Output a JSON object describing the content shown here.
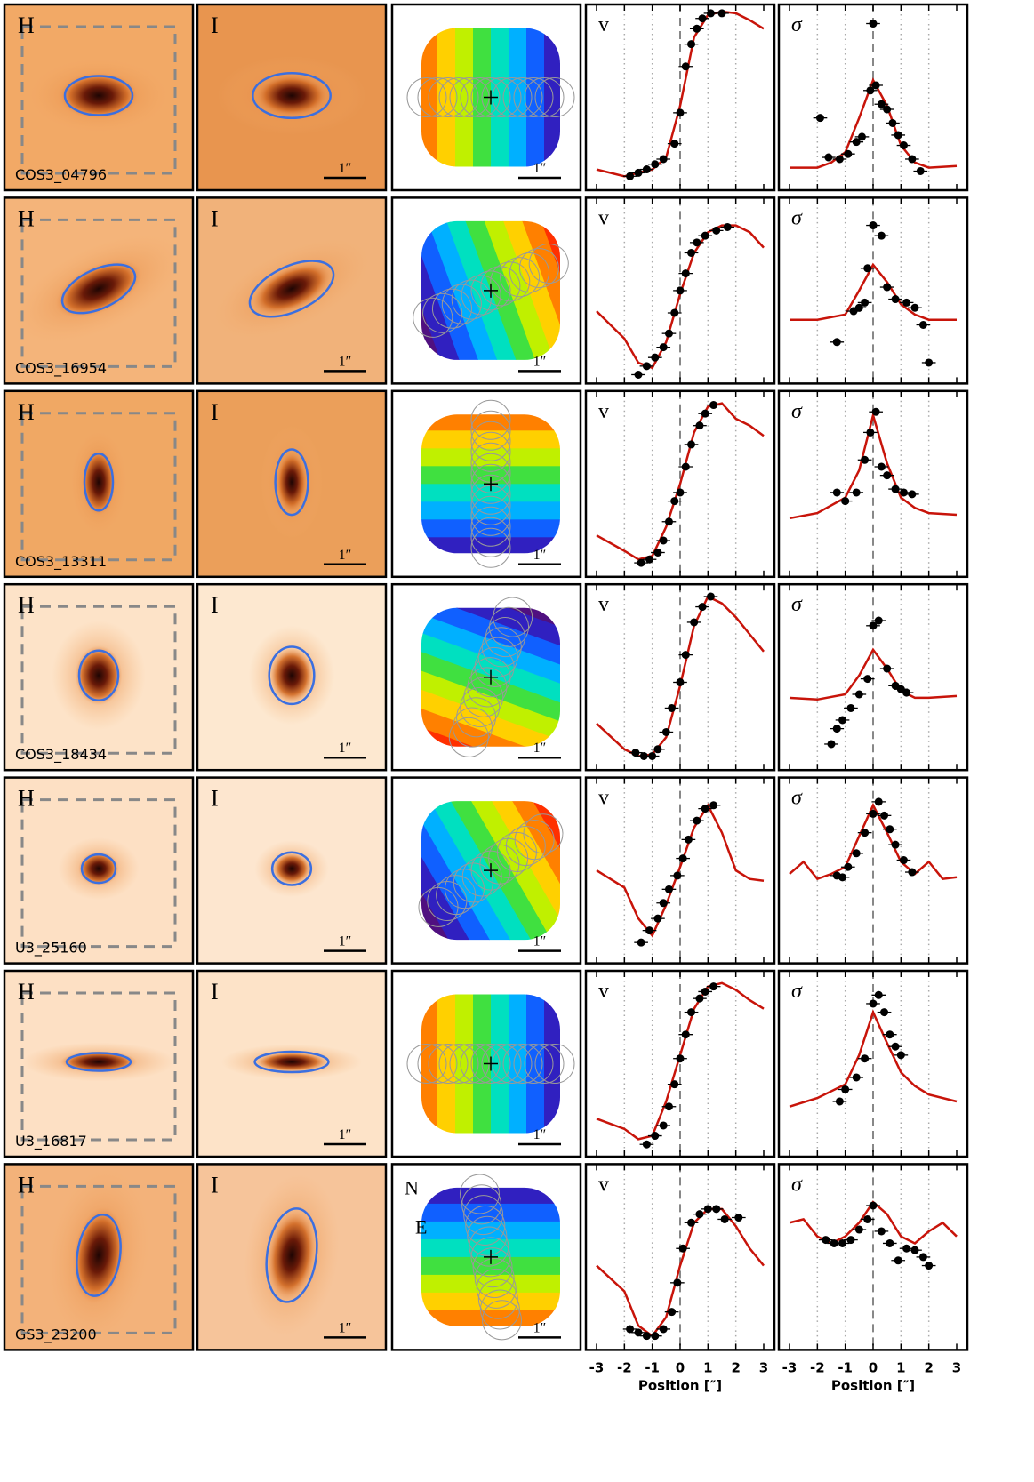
{
  "galaxies": [
    "COS3_04796",
    "COS3_16954",
    "COS3_13311",
    "COS3_18434",
    "U3_25160",
    "U3_16817",
    "GS3_23200"
  ],
  "labels": {
    "image_labels": [
      "H",
      "I"
    ],
    "scale_label": "1″",
    "compass": [
      "N",
      "E"
    ]
  },
  "axis": {
    "xlabel": "Position [″]",
    "xlim": [
      -3,
      3
    ],
    "xticks": [
      -3,
      -2,
      -1,
      0,
      1,
      2,
      3
    ],
    "ylim": [
      0,
      100
    ],
    "xerr": 0.25
  },
  "chart_data": [
    {
      "type": "scatter",
      "title": "v",
      "x": [
        -1.8,
        -1.5,
        -1.2,
        -0.9,
        -0.6,
        -0.2,
        0,
        0.2,
        0.4,
        0.6,
        0.8,
        1.1,
        1.5
      ],
      "values": [
        4,
        6,
        8,
        11,
        14,
        23,
        41,
        68,
        81,
        90,
        96,
        99,
        99
      ],
      "model_x": [
        -3,
        -2,
        -1,
        -0.5,
        0,
        0.5,
        1,
        1.5,
        2,
        2.5,
        3
      ],
      "model": [
        8,
        4,
        8,
        15,
        45,
        85,
        98,
        100,
        99,
        95,
        90
      ]
    },
    {
      "type": "scatter",
      "title": "σ",
      "x": [
        -1.9,
        -1.6,
        -1.2,
        -0.9,
        -0.6,
        -0.4,
        -0.1,
        0,
        0.1,
        0.3,
        0.5,
        0.7,
        0.9,
        1.1,
        1.4,
        1.7
      ],
      "values": [
        38,
        15,
        14,
        17,
        24,
        27,
        54,
        93,
        57,
        46,
        43,
        35,
        28,
        22,
        14,
        7
      ],
      "model_x": [
        -3,
        -2,
        -1.5,
        -1,
        -0.5,
        0,
        0.5,
        1,
        1.5,
        2,
        3
      ],
      "model": [
        9,
        9,
        12,
        18,
        38,
        60,
        45,
        22,
        12,
        9,
        10
      ]
    },
    {
      "type": "scatter",
      "title": "v",
      "x": [
        -1.5,
        -1.2,
        -0.9,
        -0.6,
        -0.4,
        -0.2,
        0,
        0.2,
        0.4,
        0.6,
        0.9,
        1.3,
        1.7
      ],
      "values": [
        1,
        6,
        11,
        17,
        25,
        37,
        50,
        60,
        72,
        78,
        82,
        85,
        87
      ],
      "model_x": [
        -3,
        -2,
        -1.5,
        -1,
        -0.5,
        0,
        0.5,
        1,
        1.5,
        2,
        2.5,
        3
      ],
      "model": [
        38,
        22,
        8,
        5,
        20,
        48,
        72,
        84,
        88,
        88,
        84,
        75
      ]
    },
    {
      "type": "scatter",
      "title": "σ",
      "x": [
        -1.3,
        -0.7,
        -0.5,
        -0.3,
        -0.2,
        0,
        0.3,
        0.5,
        0.8,
        1.2,
        1.5,
        1.8,
        2.0
      ],
      "values": [
        20,
        38,
        40,
        43,
        63,
        88,
        82,
        52,
        45,
        43,
        40,
        30,
        8
      ],
      "model_x": [
        -3,
        -2,
        -1,
        -0.5,
        0,
        0.5,
        1,
        1.5,
        2,
        3
      ],
      "model": [
        33,
        33,
        36,
        50,
        65,
        55,
        42,
        36,
        33,
        33
      ]
    },
    {
      "type": "scatter",
      "title": "v",
      "x": [
        -1.4,
        -1.1,
        -0.8,
        -0.6,
        -0.4,
        -0.2,
        0,
        0.2,
        0.4,
        0.7,
        0.9,
        1.2
      ],
      "values": [
        4,
        6,
        10,
        17,
        28,
        40,
        45,
        60,
        73,
        84,
        91,
        96
      ],
      "model_x": [
        -3,
        -2,
        -1.5,
        -1,
        -0.5,
        0,
        0.5,
        1,
        1.5,
        2,
        2.5,
        3
      ],
      "model": [
        20,
        11,
        6,
        8,
        25,
        50,
        80,
        95,
        97,
        88,
        84,
        78
      ]
    },
    {
      "type": "scatter",
      "title": "σ",
      "x": [
        -1.3,
        -1,
        -0.6,
        -0.3,
        -0.1,
        0.1,
        0.3,
        0.5,
        0.8,
        1.1,
        1.4
      ],
      "values": [
        45,
        40,
        45,
        64,
        80,
        92,
        60,
        55,
        47,
        45,
        44
      ],
      "model_x": [
        -3,
        -2,
        -1,
        -0.5,
        0,
        0.5,
        1,
        1.5,
        2,
        3
      ],
      "model": [
        30,
        33,
        42,
        58,
        90,
        62,
        42,
        36,
        33,
        32
      ]
    },
    {
      "type": "scatter",
      "title": "v",
      "x": [
        -1.6,
        -1.3,
        -1,
        -0.8,
        -0.5,
        -0.3,
        0,
        0.2,
        0.5,
        0.8,
        1.1
      ],
      "values": [
        6,
        4,
        4,
        8,
        18,
        32,
        47,
        63,
        82,
        91,
        97
      ],
      "model_x": [
        -3,
        -2,
        -1.5,
        -1,
        -0.5,
        0,
        0.5,
        1,
        1.5,
        2,
        2.5,
        3
      ],
      "model": [
        23,
        8,
        4,
        5,
        15,
        45,
        80,
        97,
        93,
        85,
        75,
        65
      ]
    },
    {
      "type": "scatter",
      "title": "σ",
      "x": [
        -1.5,
        -1.3,
        -1.1,
        -0.8,
        -0.5,
        -0.2,
        0,
        0.2,
        0.5,
        0.8,
        1,
        1.2
      ],
      "values": [
        11,
        20,
        25,
        32,
        40,
        49,
        80,
        83,
        55,
        45,
        43,
        41
      ],
      "model_x": [
        -3,
        -2,
        -1,
        -0.5,
        0,
        0.5,
        1,
        1.5,
        2,
        3
      ],
      "model": [
        38,
        37,
        40,
        51,
        66,
        55,
        42,
        38,
        38,
        39
      ]
    },
    {
      "type": "scatter",
      "title": "v",
      "x": [
        -1.4,
        -1.1,
        -0.8,
        -0.6,
        -0.4,
        -0.1,
        0.1,
        0.3,
        0.6,
        0.9,
        1.2
      ],
      "values": [
        8,
        15,
        22,
        31,
        39,
        47,
        57,
        68,
        79,
        86,
        88
      ],
      "model_x": [
        -3,
        -2,
        -1.5,
        -1,
        -0.5,
        0,
        0.5,
        1,
        1.5,
        2,
        2.5,
        3
      ],
      "model": [
        50,
        40,
        22,
        12,
        30,
        52,
        75,
        88,
        72,
        50,
        45,
        44
      ]
    },
    {
      "type": "scatter",
      "title": "σ",
      "x": [
        -1.3,
        -1.1,
        -0.9,
        -0.6,
        -0.3,
        0,
        0.2,
        0.4,
        0.6,
        0.8,
        1.1,
        1.4
      ],
      "values": [
        47,
        46,
        52,
        60,
        72,
        83,
        90,
        82,
        74,
        65,
        56,
        49
      ],
      "model_x": [
        -3,
        -2.5,
        -2,
        -1.5,
        -1,
        -0.5,
        0,
        0.5,
        1,
        1.5,
        2,
        2.5,
        3
      ],
      "model": [
        48,
        55,
        45,
        48,
        52,
        70,
        88,
        72,
        55,
        48,
        55,
        45,
        46
      ]
    },
    {
      "type": "scatter",
      "title": "v",
      "x": [
        -1.2,
        -0.9,
        -0.6,
        -0.4,
        -0.2,
        0,
        0.2,
        0.4,
        0.7,
        0.9,
        1.2
      ],
      "values": [
        3,
        8,
        14,
        25,
        38,
        53,
        67,
        80,
        88,
        92,
        95
      ],
      "model_x": [
        -3,
        -2,
        -1.5,
        -1,
        -0.5,
        0,
        0.5,
        1,
        1.5,
        2,
        2.5,
        3
      ],
      "model": [
        18,
        12,
        6,
        8,
        28,
        55,
        82,
        95,
        97,
        93,
        87,
        82
      ]
    },
    {
      "type": "scatter",
      "title": "σ",
      "x": [
        -1.2,
        -1,
        -0.6,
        -0.3,
        0,
        0.2,
        0.4,
        0.6,
        0.8,
        1
      ],
      "values": [
        28,
        35,
        42,
        53,
        85,
        90,
        80,
        67,
        60,
        55
      ],
      "model_x": [
        -3,
        -2,
        -1,
        -0.5,
        0,
        0.5,
        1,
        1.5,
        2,
        3
      ],
      "model": [
        25,
        30,
        38,
        55,
        80,
        62,
        45,
        37,
        32,
        28
      ]
    },
    {
      "type": "scatter",
      "title": "v",
      "x": [
        -1.8,
        -1.5,
        -1.2,
        -0.9,
        -0.6,
        -0.3,
        -0.1,
        0.1,
        0.4,
        0.7,
        1,
        1.3,
        1.6,
        2.1
      ],
      "values": [
        8,
        6,
        4,
        4,
        8,
        18,
        35,
        55,
        70,
        75,
        78,
        78,
        72,
        73
      ],
      "model_x": [
        -3,
        -2,
        -1.5,
        -1,
        -0.5,
        0,
        0.5,
        1,
        1.5,
        2,
        2.5,
        3
      ],
      "model": [
        45,
        30,
        10,
        4,
        15,
        45,
        70,
        78,
        78,
        68,
        55,
        45
      ]
    },
    {
      "type": "scatter",
      "title": "σ",
      "x": [
        -1.7,
        -1.4,
        -1.1,
        -0.8,
        -0.5,
        -0.2,
        0,
        0.3,
        0.6,
        0.9,
        1.2,
        1.5,
        1.8,
        2
      ],
      "values": [
        60,
        58,
        58,
        60,
        66,
        72,
        80,
        65,
        58,
        48,
        55,
        54,
        50,
        45
      ],
      "model_x": [
        -3,
        -2.5,
        -2,
        -1.5,
        -1,
        -0.5,
        0,
        0.5,
        1,
        1.5,
        2,
        2.5,
        3
      ],
      "model": [
        70,
        72,
        62,
        58,
        62,
        70,
        82,
        75,
        62,
        58,
        65,
        70,
        62
      ]
    }
  ]
}
